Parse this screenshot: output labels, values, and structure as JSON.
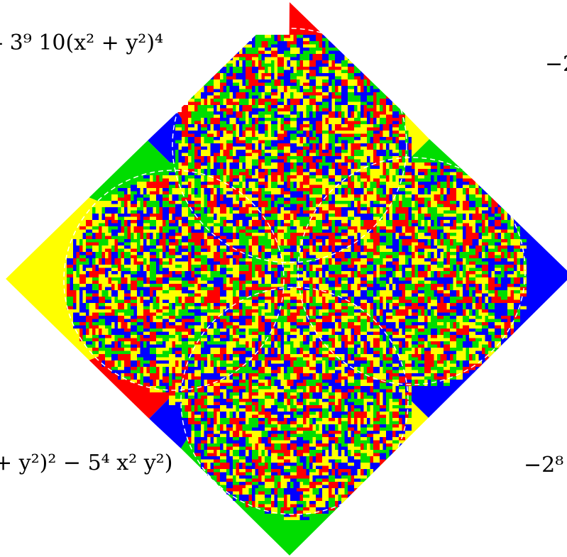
{
  "labels": {
    "top_left": "- 3⁹ 10(x² + y²)⁴",
    "top_right": "−2",
    "bottom_left": "+ y²)² − 5⁴ x² y²)",
    "bottom_right": "−2⁸"
  }
}
